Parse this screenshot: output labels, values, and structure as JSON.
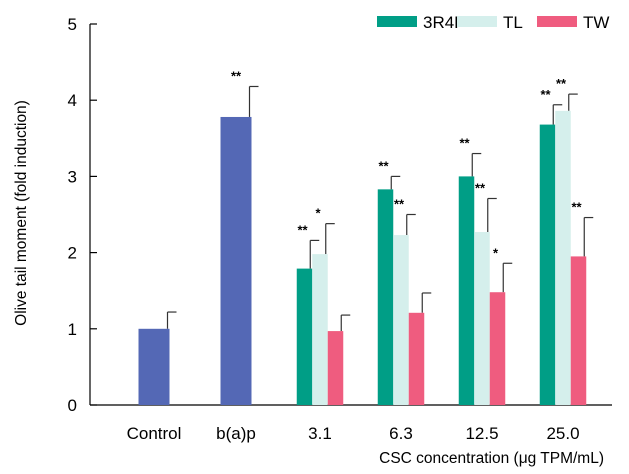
{
  "chart_data": {
    "type": "bar",
    "xlabel": "CSC concentration (μg TPM/mL)",
    "ylabel": "Olive tail moment (fold induction)",
    "ylim": [
      0,
      5
    ],
    "yticks": [
      0,
      1,
      2,
      3,
      4,
      5
    ],
    "grid": false,
    "legend_position": "top-right",
    "legend": [
      {
        "name": "3R4F",
        "color": "#009e86"
      },
      {
        "name": "TL",
        "color": "#d5efec"
      },
      {
        "name": "TW",
        "color": "#ef5c7f"
      }
    ],
    "groups": [
      {
        "label": "Control",
        "bars": [
          {
            "series": "control",
            "color": "#5468b5",
            "value": 1.0,
            "error": 0.22,
            "sig": ""
          }
        ]
      },
      {
        "label": "b(a)p",
        "bars": [
          {
            "series": "bap",
            "color": "#5468b5",
            "value": 3.78,
            "error": 0.4,
            "sig": "**"
          }
        ]
      },
      {
        "label": "3.1",
        "bars": [
          {
            "series": "3R4F",
            "color": "#009e86",
            "value": 1.79,
            "error": 0.37,
            "sig": "**"
          },
          {
            "series": "TL",
            "color": "#d5efec",
            "value": 1.98,
            "error": 0.4,
            "sig": "*"
          },
          {
            "series": "TW",
            "color": "#ef5c7f",
            "value": 0.97,
            "error": 0.21,
            "sig": ""
          }
        ]
      },
      {
        "label": "6.3",
        "bars": [
          {
            "series": "3R4F",
            "color": "#009e86",
            "value": 2.83,
            "error": 0.17,
            "sig": "**"
          },
          {
            "series": "TL",
            "color": "#d5efec",
            "value": 2.23,
            "error": 0.27,
            "sig": "**"
          },
          {
            "series": "TW",
            "color": "#ef5c7f",
            "value": 1.21,
            "error": 0.26,
            "sig": ""
          }
        ]
      },
      {
        "label": "12.5",
        "bars": [
          {
            "series": "3R4F",
            "color": "#009e86",
            "value": 3.0,
            "error": 0.3,
            "sig": "**"
          },
          {
            "series": "TL",
            "color": "#d5efec",
            "value": 2.27,
            "error": 0.44,
            "sig": "**"
          },
          {
            "series": "TW",
            "color": "#ef5c7f",
            "value": 1.48,
            "error": 0.38,
            "sig": "*"
          }
        ]
      },
      {
        "label": "25.0",
        "bars": [
          {
            "series": "3R4F",
            "color": "#009e86",
            "value": 3.68,
            "error": 0.26,
            "sig": "**"
          },
          {
            "series": "TL",
            "color": "#d5efec",
            "value": 3.86,
            "error": 0.22,
            "sig": "**"
          },
          {
            "series": "TW",
            "color": "#ef5c7f",
            "value": 1.95,
            "error": 0.51,
            "sig": "**"
          }
        ]
      }
    ]
  }
}
